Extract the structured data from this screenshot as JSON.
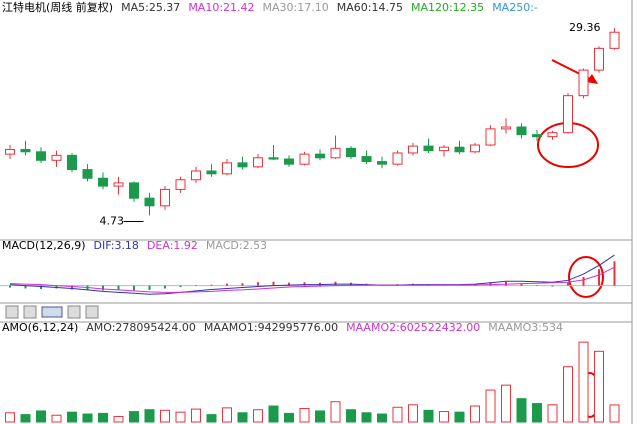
{
  "chart_data": [
    {
      "type": "candlestick",
      "title": "江特电机(周线 前复权)",
      "log_scale": true,
      "ylim": [
        3.8,
        38.6
      ],
      "legend": [
        {
          "label": "MA5:25.37",
          "color": "#333333"
        },
        {
          "label": "MA10:21.42",
          "color": "#cc33cc"
        },
        {
          "label": "MA30:17.10",
          "color": "#999999"
        },
        {
          "label": "MA60:14.75",
          "color": "#333333"
        },
        {
          "label": "MA120:12.35",
          "color": "#22aa22"
        },
        {
          "label": "MA250:-",
          "color": "#3399cc"
        }
      ],
      "annotations": [
        "29.36",
        "4.73"
      ],
      "up_color": "#e8343c",
      "down_color": "#1a9a4a",
      "series": [
        {
          "name": "open",
          "values": [
            8.6,
            9.0,
            8.8,
            8.1,
            8.5,
            7.4,
            6.8,
            6.3,
            6.5,
            5.6,
            5.2,
            6.1,
            6.7,
            7.3,
            7.1,
            7.9,
            7.6,
            8.3,
            8.2,
            7.8,
            8.6,
            8.3,
            9.1,
            8.4,
            8.0,
            7.8,
            8.7,
            9.3,
            8.9,
            9.2,
            8.8,
            9.4,
            11.0,
            11.2,
            10.4,
            10.2,
            10.6,
            15.2,
            19.5,
            24.1
          ]
        },
        {
          "name": "high",
          "values": [
            9.4,
            9.8,
            9.2,
            8.9,
            8.7,
            7.8,
            7.2,
            6.9,
            6.6,
            5.9,
            6.3,
            6.9,
            7.6,
            7.8,
            8.2,
            8.4,
            8.6,
            9.4,
            8.5,
            8.8,
            9.0,
            10.3,
            9.3,
            8.9,
            8.4,
            8.9,
            9.6,
            10.0,
            9.4,
            9.8,
            9.6,
            11.4,
            12.2,
            11.6,
            10.9,
            10.8,
            15.6,
            19.8,
            24.6,
            29.36
          ]
        },
        {
          "name": "low",
          "values": [
            8.2,
            8.5,
            7.9,
            7.6,
            7.2,
            6.6,
            6.1,
            5.8,
            5.4,
            4.73,
            5.0,
            5.9,
            6.5,
            6.9,
            7.0,
            7.4,
            7.5,
            8.1,
            7.6,
            7.7,
            8.1,
            8.2,
            8.2,
            7.8,
            7.5,
            7.7,
            8.5,
            8.7,
            8.4,
            8.6,
            8.7,
            9.3,
            10.5,
            10.0,
            9.8,
            9.9,
            10.5,
            14.8,
            19.0,
            23.8
          ]
        },
        {
          "name": "close",
          "values": [
            9.0,
            8.8,
            8.1,
            8.5,
            7.4,
            6.8,
            6.3,
            6.5,
            5.6,
            5.2,
            6.1,
            6.7,
            7.3,
            7.1,
            7.9,
            7.6,
            8.3,
            8.2,
            7.8,
            8.6,
            8.3,
            9.1,
            8.4,
            8.0,
            7.8,
            8.7,
            9.3,
            8.9,
            9.2,
            8.8,
            9.4,
            11.0,
            11.2,
            10.4,
            10.2,
            10.6,
            15.2,
            19.5,
            24.1,
            28.2
          ]
        }
      ]
    },
    {
      "type": "macd",
      "title": "MACD(12,26,9)",
      "ylim": [
        -1.5,
        3.5
      ],
      "legend": [
        {
          "label": "DIF:3.18",
          "color": "#3333aa"
        },
        {
          "label": "DEA:1.92",
          "color": "#cc33cc"
        },
        {
          "label": "MACD:2.53",
          "color": "#999999"
        }
      ],
      "up_color": "#e8343c",
      "down_color": "#1a9a4a",
      "values": [
        -0.2,
        -0.3,
        -0.35,
        -0.3,
        -0.4,
        -0.45,
        -0.5,
        -0.45,
        -0.5,
        -0.45,
        -0.3,
        -0.15,
        0.05,
        0.1,
        0.2,
        0.25,
        0.35,
        0.4,
        0.3,
        0.35,
        0.3,
        0.4,
        0.3,
        0.2,
        0.1,
        0.15,
        0.2,
        0.15,
        0.1,
        0.1,
        0.15,
        0.35,
        0.4,
        0.2,
        0.05,
        -0.1,
        0.3,
        0.9,
        1.7,
        2.53
      ],
      "series": [
        {
          "name": "DIF",
          "color": "#3333aa",
          "values": [
            0.1,
            0.0,
            -0.1,
            -0.2,
            -0.3,
            -0.45,
            -0.6,
            -0.7,
            -0.8,
            -0.9,
            -0.85,
            -0.7,
            -0.55,
            -0.4,
            -0.3,
            -0.2,
            -0.1,
            0.0,
            0.05,
            0.1,
            0.1,
            0.15,
            0.15,
            0.1,
            0.05,
            0.05,
            0.1,
            0.1,
            0.1,
            0.1,
            0.15,
            0.3,
            0.45,
            0.45,
            0.4,
            0.35,
            0.55,
            1.2,
            2.1,
            3.18
          ]
        },
        {
          "name": "DEA",
          "color": "#cc33cc",
          "values": [
            0.2,
            0.15,
            0.1,
            0.0,
            -0.1,
            -0.2,
            -0.35,
            -0.45,
            -0.55,
            -0.65,
            -0.7,
            -0.7,
            -0.65,
            -0.6,
            -0.5,
            -0.45,
            -0.35,
            -0.25,
            -0.15,
            -0.1,
            -0.05,
            0.0,
            0.02,
            0.05,
            0.05,
            0.04,
            0.05,
            0.05,
            0.06,
            0.06,
            0.07,
            0.1,
            0.15,
            0.2,
            0.25,
            0.3,
            0.35,
            0.6,
            1.1,
            1.92
          ]
        }
      ]
    },
    {
      "type": "volume",
      "title": "AMO(6,12,24)",
      "ylim": [
        0,
        1400000000
      ],
      "legend": [
        {
          "label": "AMO:278095424.00",
          "color": "#333333"
        },
        {
          "label": "MAAMO1:942995776.00",
          "color": "#333333"
        },
        {
          "label": "MAAMO2:602522432.00",
          "color": "#cc33cc"
        },
        {
          "label": "MAAMO3:534",
          "color": "#999999"
        }
      ],
      "up_color": "#e8343c",
      "down_color": "#1a9a4a",
      "values": [
        150000000,
        120000000,
        180000000,
        110000000,
        160000000,
        130000000,
        140000000,
        90000000,
        170000000,
        200000000,
        190000000,
        160000000,
        210000000,
        120000000,
        230000000,
        150000000,
        200000000,
        260000000,
        140000000,
        220000000,
        180000000,
        330000000,
        200000000,
        150000000,
        130000000,
        240000000,
        280000000,
        190000000,
        170000000,
        160000000,
        260000000,
        520000000,
        600000000,
        380000000,
        300000000,
        280000000,
        900000000,
        1300000000,
        1150000000,
        278095424
      ]
    }
  ]
}
